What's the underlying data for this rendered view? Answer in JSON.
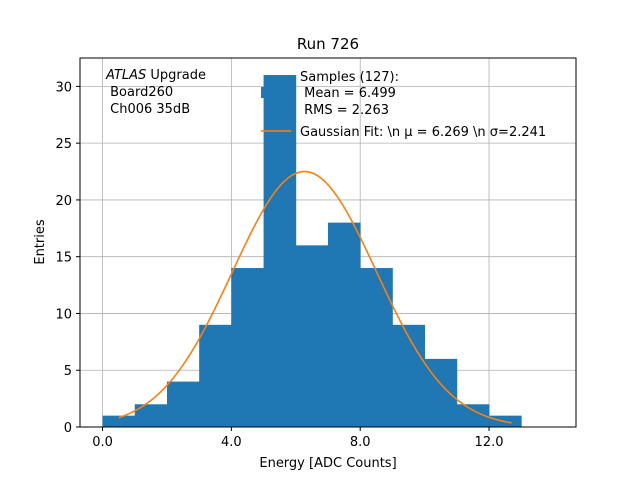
{
  "chart_data": {
    "type": "bar",
    "title": "Run 726",
    "xlabel": "Energy [ADC Counts]",
    "ylabel": "Entries",
    "xlim": [
      -0.7,
      14.7
    ],
    "ylim": [
      0,
      32.5
    ],
    "grid": true,
    "xticks": [
      0,
      4,
      8,
      12
    ],
    "xtick_labels": [
      "0.0",
      "4.0",
      "8.0",
      "12.0"
    ],
    "yticks": [
      0,
      5,
      10,
      15,
      20,
      25,
      30
    ],
    "ytick_labels": [
      "0",
      "5",
      "10",
      "15",
      "20",
      "25",
      "30"
    ],
    "histogram": {
      "bin_edges": [
        0,
        1,
        2,
        3,
        4,
        5,
        6,
        7,
        8,
        9,
        10,
        11,
        12,
        13
      ],
      "counts": [
        1,
        2,
        4,
        9,
        14,
        31,
        16,
        18,
        14,
        9,
        6,
        2,
        1
      ],
      "color": "#1f77b4"
    },
    "fit_curve": {
      "name": "Gaussian Fit",
      "mu": 6.269,
      "sigma": 2.241,
      "amplitude": 22.5,
      "x_range": [
        0.5,
        12.7
      ],
      "color": "#ff7f0e"
    },
    "annotation": {
      "experiment": "ATLAS",
      "experiment_suffix": " Upgrade",
      "line2": " Board260",
      "line3": " Ch006 35dB"
    },
    "legend": {
      "position": "top-right",
      "hist_line1": "Samples (127):",
      "hist_line2": " Mean = 6.499",
      "hist_line3": " RMS = 2.263",
      "fit_label": "Gaussian Fit: \\n μ = 6.269 \\n σ=2.241"
    }
  }
}
